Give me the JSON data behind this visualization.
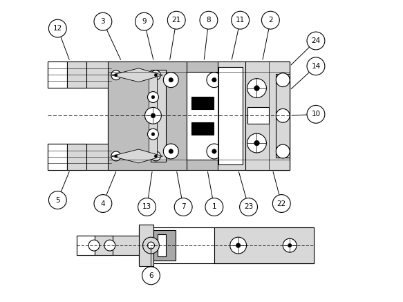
{
  "bg_color": "#ffffff",
  "lc": "#000000",
  "gray": "#bebebe",
  "lgray": "#d8d8d8",
  "mgray": "#a8a8a8",
  "dgray": "#888888",
  "fig_w": 5.83,
  "fig_h": 4.37,
  "dpi": 100
}
